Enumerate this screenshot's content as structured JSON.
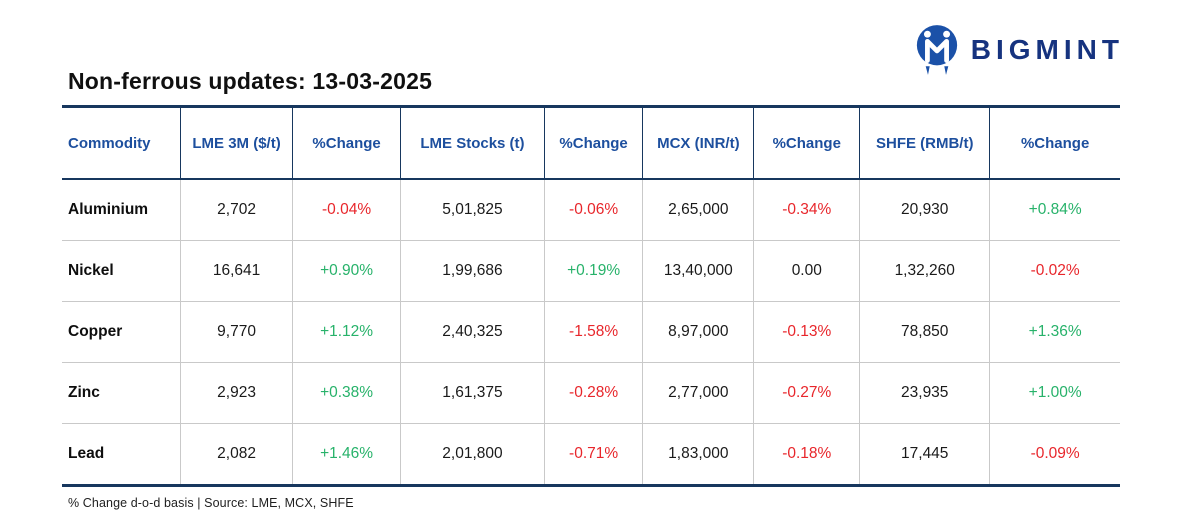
{
  "brand": {
    "name": "BIGMINT",
    "logo_color": "#1b51a8",
    "text_color": "#16337f"
  },
  "page_title": "Non-ferrous updates: 13-03-2025",
  "footnote": "% Change d-o-d basis | Source: LME, MCX, SHFE",
  "colors": {
    "header_text": "#1d4f9e",
    "border_dark": "#17375e",
    "positive": "#27b26a",
    "negative": "#e8262b",
    "row_divider": "#c9c9c9"
  },
  "chart_data": {
    "type": "table",
    "title": "Non-ferrous updates: 13-03-2025",
    "columns": [
      "Commodity",
      "LME 3M ($/t)",
      "%Change",
      "LME Stocks (t)",
      "%Change",
      "MCX (INR/t)",
      "%Change",
      "SHFE (RMB/t)",
      "%Change"
    ],
    "rows": [
      {
        "commodity": "Aluminium",
        "values": [
          "2,702",
          "-0.04%",
          "5,01,825",
          "-0.06%",
          "2,65,000",
          "-0.34%",
          "20,930",
          "+0.84%"
        ]
      },
      {
        "commodity": "Nickel",
        "values": [
          "16,641",
          "+0.90%",
          "1,99,686",
          "+0.19%",
          "13,40,000",
          "0.00",
          "1,32,260",
          "-0.02%"
        ]
      },
      {
        "commodity": "Copper",
        "values": [
          "9,770",
          "+1.12%",
          "2,40,325",
          "-1.58%",
          "8,97,000",
          "-0.13%",
          "78,850",
          "+1.36%"
        ]
      },
      {
        "commodity": "Zinc",
        "values": [
          "2,923",
          "+0.38%",
          "1,61,375",
          "-0.28%",
          "2,77,000",
          "-0.27%",
          "23,935",
          "+1.00%"
        ]
      },
      {
        "commodity": "Lead",
        "values": [
          "2,082",
          "+1.46%",
          "2,01,800",
          "-0.71%",
          "1,83,000",
          "-0.18%",
          "17,445",
          "-0.09%"
        ]
      }
    ]
  }
}
